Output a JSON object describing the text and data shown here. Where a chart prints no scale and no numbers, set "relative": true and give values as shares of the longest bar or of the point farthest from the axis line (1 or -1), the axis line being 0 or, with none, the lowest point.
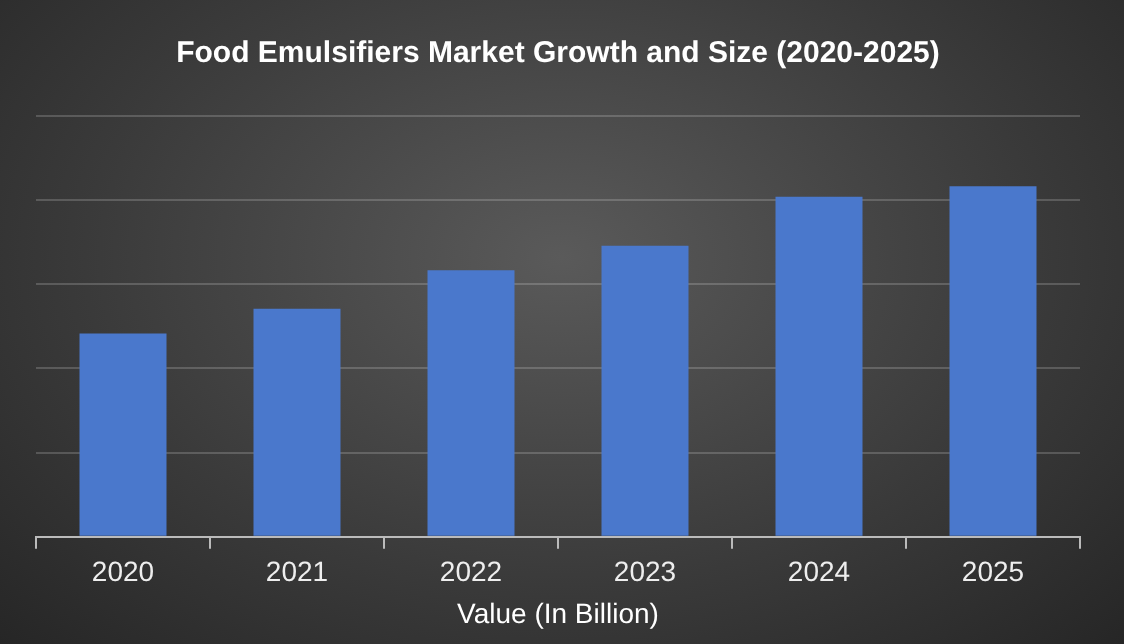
{
  "chart_data": {
    "type": "bar",
    "title": "Food Emulsifiers Market Growth and Size (2020-2025)",
    "xlabel": "Value (In Billion)",
    "categories": [
      "2020",
      "2021",
      "2022",
      "2023",
      "2024",
      "2025"
    ],
    "values": [
      0.58,
      0.65,
      0.76,
      0.83,
      0.97,
      1
    ],
    "color": "#4a78cc",
    "relative": true,
    "grid": "y"
  }
}
